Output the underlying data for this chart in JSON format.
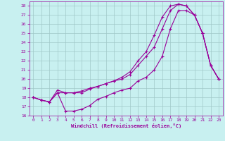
{
  "background_color": "#c8f0f0",
  "grid_color": "#a0c8c8",
  "line_color": "#990099",
  "xlabel": "Windchill (Refroidissement éolien,°C)",
  "xlim": [
    -0.5,
    23.5
  ],
  "ylim": [
    16,
    28.5
  ],
  "yticks": [
    16,
    17,
    18,
    19,
    20,
    21,
    22,
    23,
    24,
    25,
    26,
    27,
    28
  ],
  "xticks": [
    0,
    1,
    2,
    3,
    4,
    5,
    6,
    7,
    8,
    9,
    10,
    11,
    12,
    13,
    14,
    15,
    16,
    17,
    18,
    19,
    20,
    21,
    22,
    23
  ],
  "line1_x": [
    0,
    1,
    2,
    3,
    4,
    5,
    6,
    7,
    8,
    9,
    10,
    11,
    12,
    13,
    14,
    15,
    16,
    17,
    18,
    19,
    20,
    21,
    22,
    23
  ],
  "line1_y": [
    18.0,
    17.7,
    17.5,
    18.5,
    16.5,
    16.5,
    16.7,
    17.1,
    17.8,
    18.1,
    18.5,
    18.8,
    19.0,
    19.8,
    20.2,
    21.0,
    22.5,
    25.5,
    27.5,
    27.5,
    27.0,
    25.0,
    21.5,
    20.0
  ],
  "line2_x": [
    0,
    1,
    2,
    3,
    4,
    5,
    6,
    7,
    8,
    9,
    10,
    11,
    12,
    13,
    14,
    15,
    16,
    17,
    18,
    19,
    20,
    21,
    22,
    23
  ],
  "line2_y": [
    18.0,
    17.7,
    17.5,
    18.8,
    18.5,
    18.5,
    18.7,
    19.0,
    19.2,
    19.5,
    19.8,
    20.2,
    20.8,
    22.0,
    23.0,
    24.8,
    26.8,
    28.0,
    28.2,
    28.0,
    27.0,
    25.0,
    21.5,
    20.0
  ],
  "line3_x": [
    0,
    1,
    2,
    3,
    4,
    5,
    6,
    7,
    8,
    9,
    10,
    11,
    12,
    13,
    14,
    15,
    16,
    17,
    18,
    19,
    20,
    21,
    22,
    23
  ],
  "line3_y": [
    18.0,
    17.7,
    17.5,
    18.5,
    18.5,
    18.5,
    18.5,
    18.9,
    19.2,
    19.5,
    19.8,
    20.0,
    20.5,
    21.5,
    22.5,
    23.5,
    25.5,
    27.5,
    28.2,
    28.0,
    27.0,
    25.0,
    21.5,
    20.0
  ]
}
